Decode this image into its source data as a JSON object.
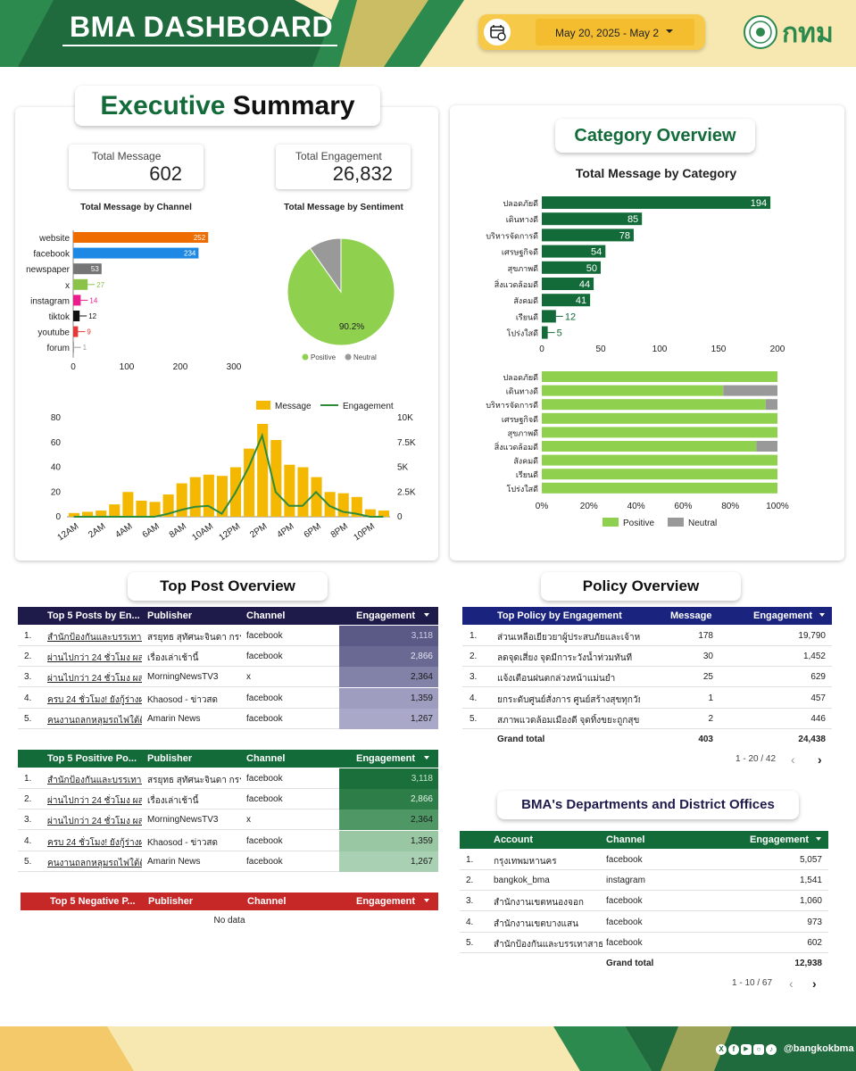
{
  "header": {
    "title": "BMA DASHBOARD",
    "date_range": "May 20, 2025 - May 2",
    "logo_text": "กทม"
  },
  "exec": {
    "title_part1": "Executive",
    "title_part2": "Summary",
    "total_message_label": "Total Message",
    "total_message_value": "602",
    "total_engagement_label": "Total Engagement",
    "total_engagement_value": "26,832",
    "channel_chart_title": "Total Message by Channel",
    "sentiment_chart_title": "Total Message by Sentiment"
  },
  "category": {
    "title": "Category Overview",
    "chart_title": "Total Message by Category"
  },
  "top_post": {
    "title": "Top Post Overview",
    "top5": {
      "headers": [
        "Top 5 Posts by En...",
        "Publisher",
        "Channel",
        "Engagement"
      ],
      "rows": [
        {
          "n": "1.",
          "post": "สำนักป้องกันและบรรเทาส...",
          "publisher": "สรยุทธ สุทัศนะจินดา กรร...",
          "channel": "facebook",
          "eng": "3,118"
        },
        {
          "n": "2.",
          "post": "ผ่านไปกว่า 24 ชั่วโมง ผล...",
          "publisher": "เรื่องเล่าเช้านี้",
          "channel": "facebook",
          "eng": "2,866"
        },
        {
          "n": "3.",
          "post": "ผ่านไปกว่า 24 ชั่วโมง ผล...",
          "publisher": "MorningNewsTV3",
          "channel": "x",
          "eng": "2,364"
        },
        {
          "n": "4.",
          "post": "ครบ 24 ชั่วโมง! ยังกู้ร่างผ...",
          "publisher": "Khaosod - ข่าวสด",
          "channel": "facebook",
          "eng": "1,359"
        },
        {
          "n": "5.",
          "post": "คนงานถลกหลุมรถไฟใต้ดิน...",
          "publisher": "Amarin News",
          "channel": "facebook",
          "eng": "1,267"
        }
      ]
    },
    "positive": {
      "headers": [
        "Top 5 Positive Po...",
        "Publisher",
        "Channel",
        "Engagement"
      ],
      "rows": [
        {
          "n": "1.",
          "post": "สำนักป้องกันและบรรเทาส...",
          "publisher": "สรยุทธ สุทัศนะจินดา กรร...",
          "channel": "facebook",
          "eng": "3,118"
        },
        {
          "n": "2.",
          "post": "ผ่านไปกว่า 24 ชั่วโมง ผล...",
          "publisher": "เรื่องเล่าเช้านี้",
          "channel": "facebook",
          "eng": "2,866"
        },
        {
          "n": "3.",
          "post": "ผ่านไปกว่า 24 ชั่วโมง ผล...",
          "publisher": "MorningNewsTV3",
          "channel": "x",
          "eng": "2,364"
        },
        {
          "n": "4.",
          "post": "ครบ 24 ชั่วโมง! ยังกู้ร่างผ...",
          "publisher": "Khaosod - ข่าวสด",
          "channel": "facebook",
          "eng": "1,359"
        },
        {
          "n": "5.",
          "post": "คนงานถลกหลุมรถไฟใต้ดิน...",
          "publisher": "Amarin News",
          "channel": "facebook",
          "eng": "1,267"
        }
      ]
    },
    "negative": {
      "headers": [
        "Top 5 Negative P...",
        "Publisher",
        "Channel",
        "Engagement"
      ],
      "no_data": "No data"
    }
  },
  "policy": {
    "title": "Policy Overview",
    "headers": [
      "Top Policy by Engagement",
      "Message",
      "Engagement"
    ],
    "rows": [
      {
        "n": "1.",
        "policy": "ส่วนเหลือเยียวยาผู้ประสบภัยและเจ้าหน้า...",
        "msg": "178",
        "eng": "19,790"
      },
      {
        "n": "2.",
        "policy": "ลดจุดเสี่ยง จุดมีการะวังน้ำท่วมทันที",
        "msg": "30",
        "eng": "1,452"
      },
      {
        "n": "3.",
        "policy": "แจ้งเตือนฝนตกล่วงหน้าแม่นยำ",
        "msg": "25",
        "eng": "629"
      },
      {
        "n": "4.",
        "policy": "ยกระดับศูนย์สั่งการ ศูนย์สร้างสุขทุกวัย ศูน...",
        "msg": "1",
        "eng": "457"
      },
      {
        "n": "5.",
        "policy": "สภาพแวดล้อมเมืองดี จุดทิ้งขยะถูกสุขอนา...",
        "msg": "2",
        "eng": "446"
      }
    ],
    "grand_total_label": "Grand total",
    "grand_total_msg": "403",
    "grand_total_eng": "24,438",
    "pager": "1 - 20 / 42"
  },
  "departments": {
    "title": "BMA's Departments and District Offices",
    "headers": [
      "Account",
      "Channel",
      "Engagement"
    ],
    "rows": [
      {
        "n": "1.",
        "account": "กรุงเทพมหานคร",
        "channel": "facebook",
        "eng": "5,057"
      },
      {
        "n": "2.",
        "account": "bangkok_bma",
        "channel": "instagram",
        "eng": "1,541"
      },
      {
        "n": "3.",
        "account": "สำนักงานเขตหนองจอก",
        "channel": "facebook",
        "eng": "1,060"
      },
      {
        "n": "4.",
        "account": "สำนักงานเขตบางแสน",
        "channel": "facebook",
        "eng": "973"
      },
      {
        "n": "5.",
        "account": "สำนักป้องกันและบรรเทาสาธาร...",
        "channel": "facebook",
        "eng": "602"
      }
    ],
    "grand_total_label": "Grand total",
    "grand_total_eng": "12,938",
    "pager": "1 - 10 / 67"
  },
  "footer": {
    "handle": "@bangkokbma"
  },
  "colors": {
    "green_dark": "#146b3a",
    "navy": "#1e1b4b",
    "red": "#c62828",
    "yellow": "#f5c400",
    "positive": "#8fd14f",
    "neutral": "#999999"
  },
  "chart_data": [
    {
      "id": "channel",
      "type": "bar",
      "orientation": "horizontal",
      "title": "Total Message by Channel",
      "categories": [
        "website",
        "facebook",
        "newspaper",
        "x",
        "instagram",
        "tiktok",
        "youtube",
        "forum"
      ],
      "values": [
        252,
        234,
        53,
        27,
        14,
        12,
        9,
        1
      ],
      "colors": [
        "#ef6c00",
        "#1e88e5",
        "#757575",
        "#8bc34a",
        "#e91e8c",
        "#111111",
        "#e53935",
        "#9e9e9e"
      ],
      "xlim": [
        0,
        300
      ],
      "xticks": [
        0,
        100,
        200,
        300
      ]
    },
    {
      "id": "sentiment",
      "type": "pie",
      "title": "Total Message by Sentiment",
      "labels": [
        "Positive",
        "Neutral"
      ],
      "values": [
        90.2,
        9.8
      ],
      "colors": [
        "#8fd14f",
        "#999999"
      ],
      "data_label": "90.2%",
      "legend": "bottom"
    },
    {
      "id": "hourly",
      "type": "bar+line",
      "x": [
        "12AM",
        "1AM",
        "2AM",
        "3AM",
        "4AM",
        "5AM",
        "6AM",
        "7AM",
        "8AM",
        "9AM",
        "10AM",
        "11AM",
        "12PM",
        "1PM",
        "2PM",
        "3PM",
        "4PM",
        "5PM",
        "6PM",
        "7PM",
        "8PM",
        "9PM",
        "10PM",
        "11PM"
      ],
      "xtick_labels": [
        "12AM",
        "2AM",
        "4AM",
        "6AM",
        "8AM",
        "10AM",
        "12PM",
        "2PM",
        "4PM",
        "6PM",
        "8PM",
        "10PM"
      ],
      "series": [
        {
          "name": "Message",
          "type": "bar",
          "axis": "left",
          "color": "#f5b800",
          "values": [
            3,
            4,
            5,
            10,
            20,
            13,
            12,
            18,
            27,
            32,
            34,
            33,
            40,
            55,
            75,
            62,
            42,
            40,
            32,
            20,
            19,
            16,
            6,
            5
          ]
        },
        {
          "name": "Engagement",
          "type": "line",
          "axis": "right",
          "color": "#2e8b3a",
          "values": [
            0,
            0,
            0,
            0,
            0,
            0,
            0,
            300,
            700,
            1000,
            1100,
            300,
            2400,
            5000,
            8200,
            2500,
            1100,
            1100,
            2500,
            1100,
            500,
            300,
            0,
            0
          ]
        }
      ],
      "ylim": [
        0,
        80
      ],
      "yticks": [
        0,
        20,
        40,
        60,
        80
      ],
      "y2lim": [
        0,
        10000
      ],
      "y2ticks": [
        "0",
        "2.5K",
        "5K",
        "7.5K",
        "10K"
      ],
      "legend": "top-right"
    },
    {
      "id": "category",
      "type": "bar",
      "orientation": "horizontal",
      "title": "Total Message by Category",
      "categories": [
        "ปลอดภัยดี",
        "เดินทางดี",
        "บริหารจัดการดี",
        "เศรษฐกิจดี",
        "สุขภาพดี",
        "สิ่งแวดล้อมดี",
        "สังคมดี",
        "เรียนดี",
        "โปร่งใสดี"
      ],
      "values": [
        194,
        85,
        78,
        54,
        50,
        44,
        41,
        12,
        5
      ],
      "color": "#146b3a",
      "xlim": [
        0,
        200
      ],
      "xticks": [
        0,
        50,
        100,
        150,
        200
      ]
    },
    {
      "id": "category_sentiment",
      "type": "bar",
      "orientation": "horizontal",
      "stacked": "percent",
      "categories": [
        "ปลอดภัยดี",
        "เดินทางดี",
        "บริหารจัดการดี",
        "เศรษฐกิจดี",
        "สุขภาพดี",
        "สิ่งแวดล้อมดี",
        "สังคมดี",
        "เรียนดี",
        "โปร่งใสดี"
      ],
      "series": [
        {
          "name": "Positive",
          "color": "#8fd14f",
          "values": [
            100,
            77,
            95,
            100,
            100,
            91,
            100,
            100,
            100
          ]
        },
        {
          "name": "Neutral",
          "color": "#999999",
          "values": [
            0,
            23,
            5,
            0,
            0,
            9,
            0,
            0,
            0
          ]
        }
      ],
      "xticks": [
        "0%",
        "20%",
        "40%",
        "60%",
        "80%",
        "100%"
      ],
      "legend": "bottom"
    }
  ]
}
